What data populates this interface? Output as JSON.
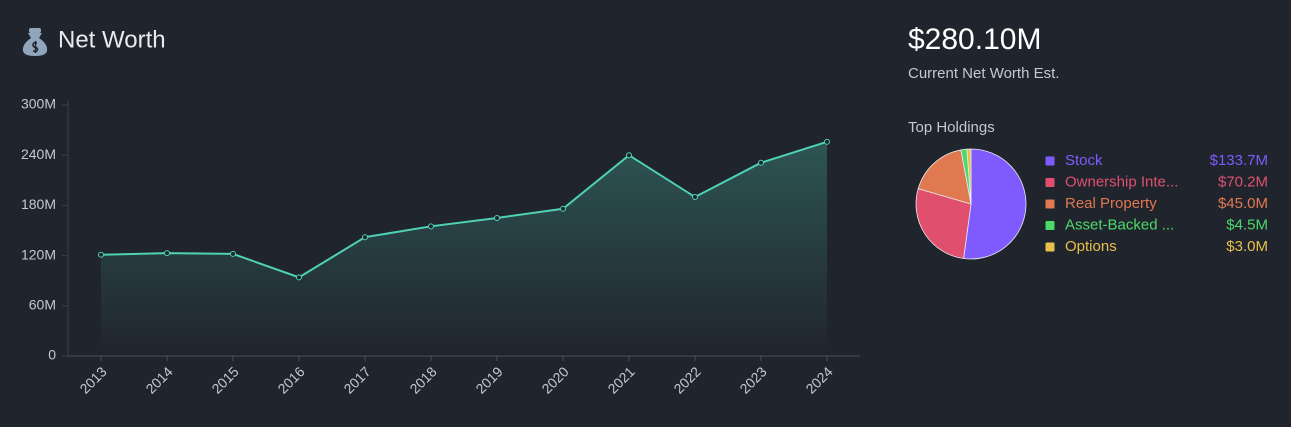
{
  "header": {
    "title": "Net Worth"
  },
  "summary": {
    "value": "$280.10M",
    "label": "Current Net Worth Est."
  },
  "chart_data": [
    {
      "type": "area",
      "categories": [
        "2013",
        "2014",
        "2015",
        "2016",
        "2017",
        "2018",
        "2019",
        "2020",
        "2021",
        "2022",
        "2023",
        "2024"
      ],
      "values": [
        121,
        123,
        122,
        94,
        142,
        155,
        165,
        176,
        240,
        190,
        231,
        256
      ],
      "color": "#4fd1b5",
      "ylim": [
        0,
        300
      ],
      "yticks": [
        0,
        {
          "value": 60,
          "label": "60M"
        },
        {
          "value": 120,
          "label": "120M"
        },
        {
          "value": 180,
          "label": "180M"
        },
        {
          "value": 240,
          "label": "240M"
        },
        {
          "value": 300,
          "label": "300M"
        }
      ]
    },
    {
      "type": "pie",
      "title": "Top Holdings",
      "categories": [
        "Stock",
        "Ownership Inte...",
        "Real Property",
        "Asset-Backed ...",
        "Options"
      ],
      "values": [
        133.7,
        70.2,
        45.0,
        4.5,
        3.0
      ],
      "value_labels": [
        "$133.7M",
        "$70.2M",
        "$45.0M",
        "$4.5M",
        "$3.0M"
      ],
      "colors": [
        "#7f5bff",
        "#e0506e",
        "#e07850",
        "#4cd96a",
        "#e6c04a"
      ]
    }
  ]
}
